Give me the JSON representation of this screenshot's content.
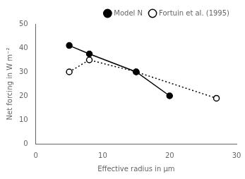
{
  "chart_data": {
    "type": "line",
    "xlabel": "Effective radius in μm",
    "ylabel": "Net forcing in W m⁻²",
    "series": [
      {
        "name": "Model N",
        "color": "black",
        "x": [
          5,
          8,
          15,
          20
        ],
        "values": [
          41,
          37.5,
          30,
          20
        ],
        "marker": "filled_circle",
        "line_style": "solid"
      },
      {
        "name": "Fortuin et al. (1995)",
        "color": "black",
        "x": [
          5,
          8,
          15,
          27
        ],
        "values": [
          30,
          35,
          30,
          19
        ],
        "marker": "open_circle",
        "line_style": "dotted"
      }
    ],
    "xlim": [
      0,
      30
    ],
    "ylim": [
      0,
      50
    ],
    "xticks": [
      0,
      10,
      20,
      30
    ],
    "yticks": [
      0,
      10,
      20,
      30,
      40,
      50
    ],
    "grid": false,
    "legend": "upper right"
  }
}
